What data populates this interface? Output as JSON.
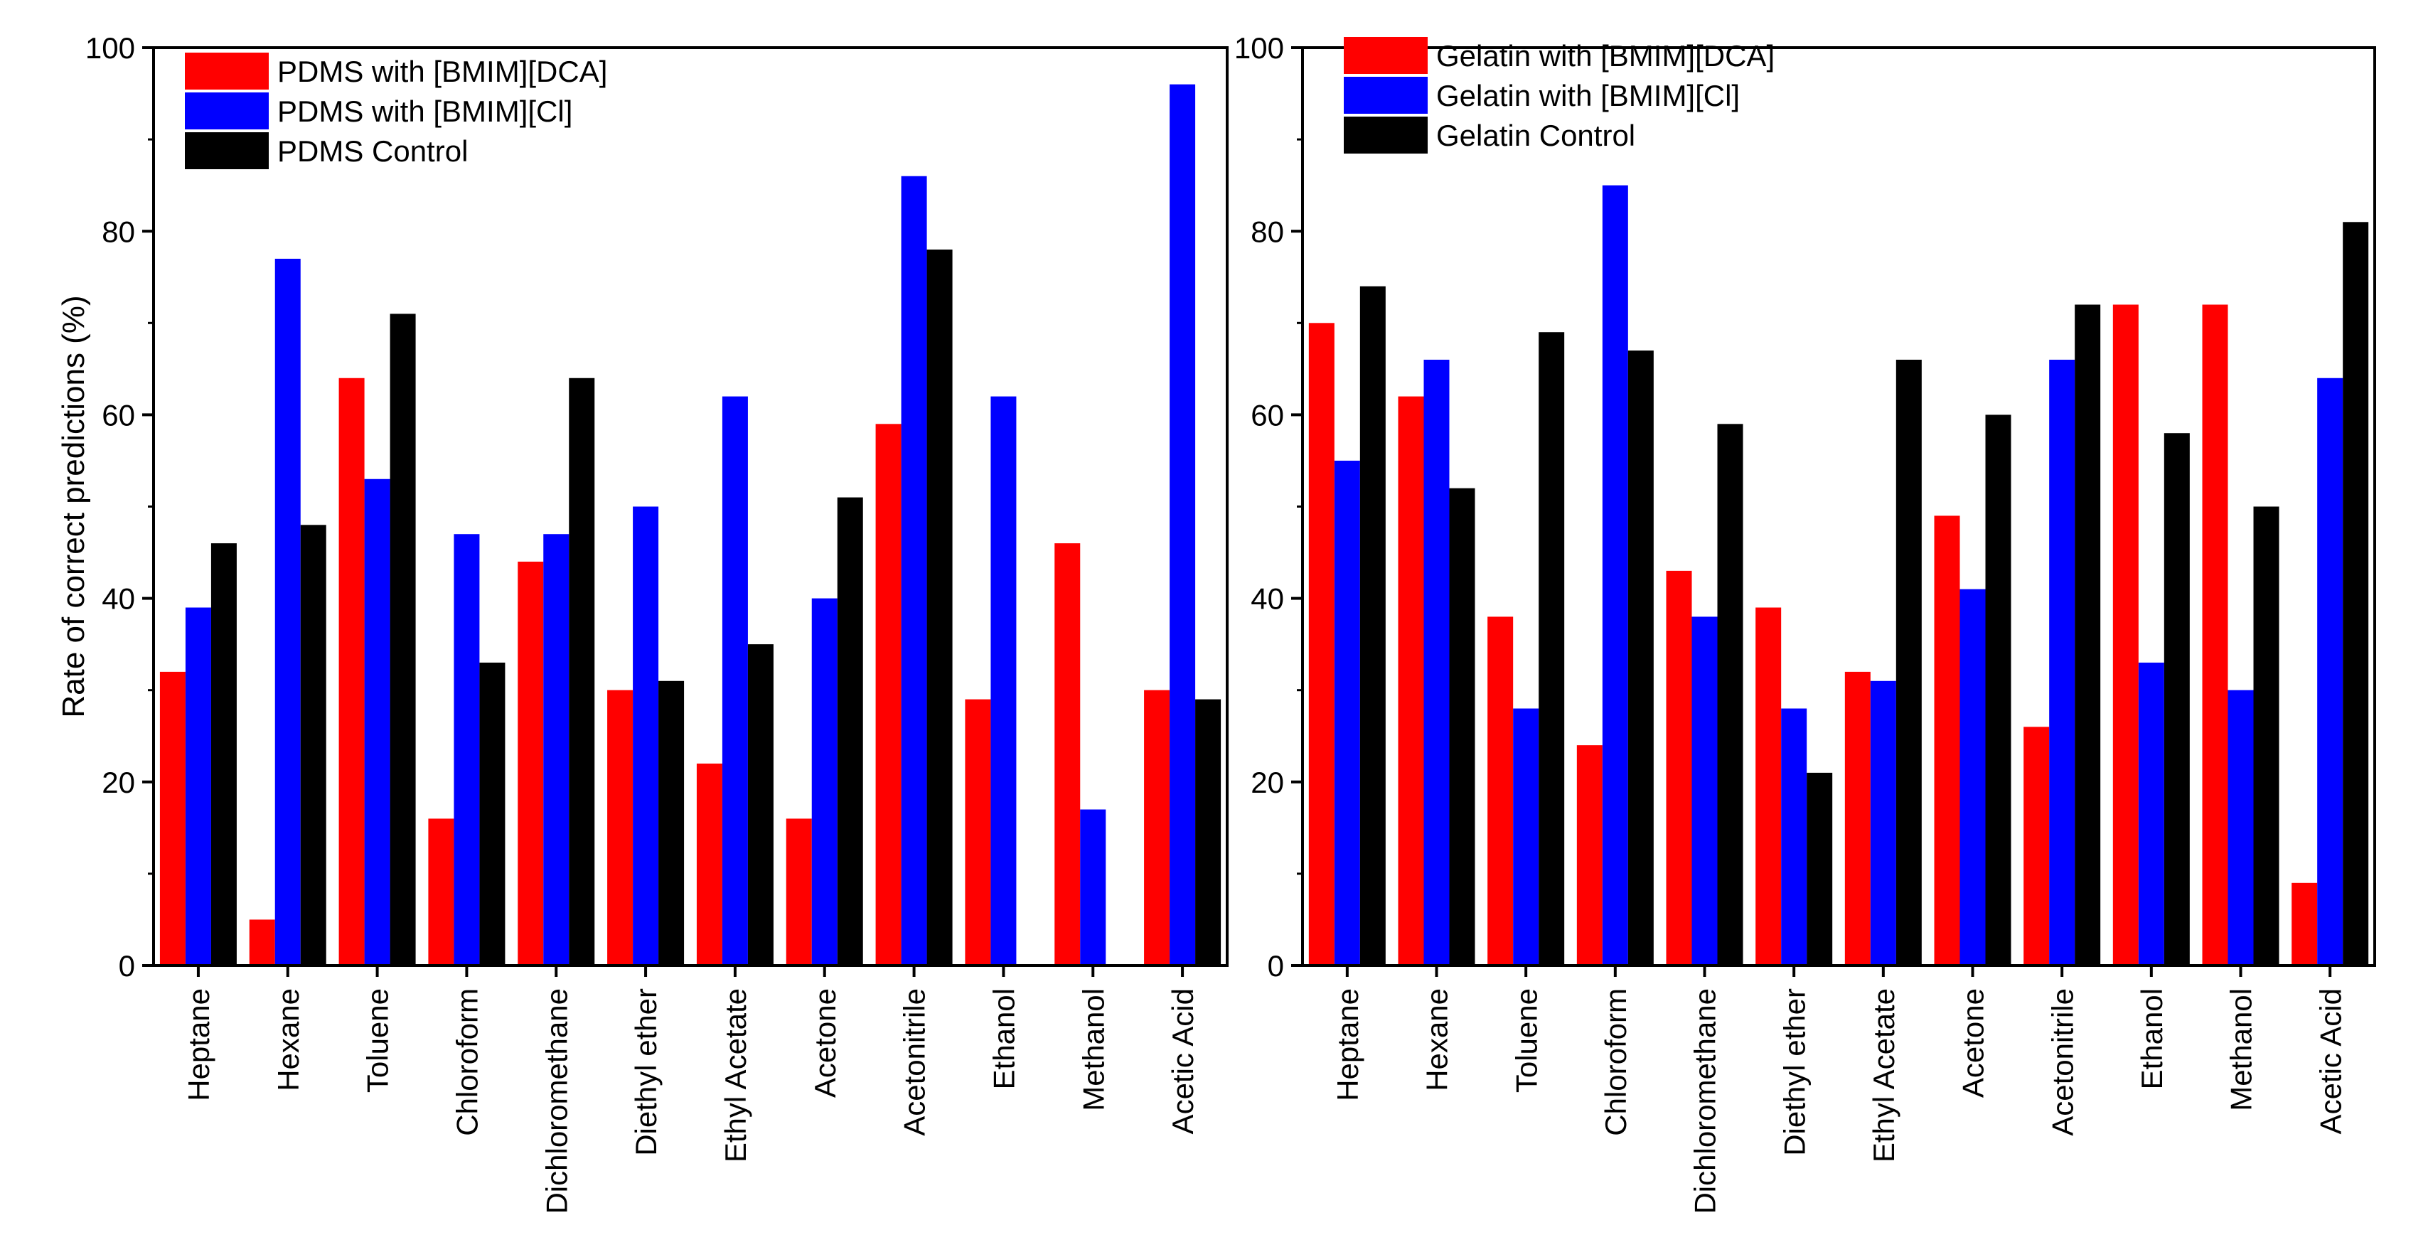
{
  "chart_data": [
    {
      "type": "bar",
      "ylabel": "Rate of correct predictions (%)",
      "xlabel": "",
      "ylim": [
        0,
        100
      ],
      "yticks": [
        0,
        20,
        40,
        60,
        80,
        100
      ],
      "legend_position": "top-left",
      "categories": [
        "Heptane",
        "Hexane",
        "Toluene",
        "Chloroform",
        "Dichloromethane",
        "Diethyl ether",
        "Ethyl Acetate",
        "Acetone",
        "Acetonitrile",
        "Ethanol",
        "Methanol",
        "Acetic Acid"
      ],
      "series": [
        {
          "name": "PDMS with [BMIM][DCA]",
          "color": "#ff0000",
          "values": [
            32,
            5,
            64,
            16,
            44,
            30,
            22,
            16,
            59,
            29,
            46,
            30
          ]
        },
        {
          "name": "PDMS with [BMIM][Cl]",
          "color": "#0000ff",
          "values": [
            39,
            77,
            53,
            47,
            47,
            50,
            62,
            40,
            86,
            62,
            17,
            96
          ]
        },
        {
          "name": "PDMS Control",
          "color": "#000000",
          "values": [
            46,
            48,
            71,
            33,
            64,
            31,
            35,
            51,
            78,
            0,
            0,
            29
          ]
        }
      ]
    },
    {
      "type": "bar",
      "ylabel": "",
      "xlabel": "",
      "ylim": [
        0,
        100
      ],
      "yticks": [
        0,
        20,
        40,
        60,
        80,
        100
      ],
      "legend_position": "top-left",
      "categories": [
        "Heptane",
        "Hexane",
        "Toluene",
        "Chloroform",
        "Dichloromethane",
        "Diethyl ether",
        "Ethyl Acetate",
        "Acetone",
        "Acetonitrile",
        "Ethanol",
        "Methanol",
        "Acetic Acid"
      ],
      "series": [
        {
          "name": "Gelatin with [BMIM][DCA]",
          "color": "#ff0000",
          "values": [
            70,
            62,
            38,
            24,
            43,
            39,
            32,
            49,
            26,
            72,
            72,
            9
          ]
        },
        {
          "name": "Gelatin with [BMIM][Cl]",
          "color": "#0000ff",
          "values": [
            55,
            66,
            28,
            85,
            38,
            28,
            31,
            41,
            66,
            33,
            30,
            64
          ]
        },
        {
          "name": "Gelatin Control",
          "color": "#000000",
          "values": [
            74,
            52,
            69,
            67,
            59,
            21,
            66,
            60,
            72,
            58,
            50,
            81
          ]
        }
      ]
    }
  ]
}
